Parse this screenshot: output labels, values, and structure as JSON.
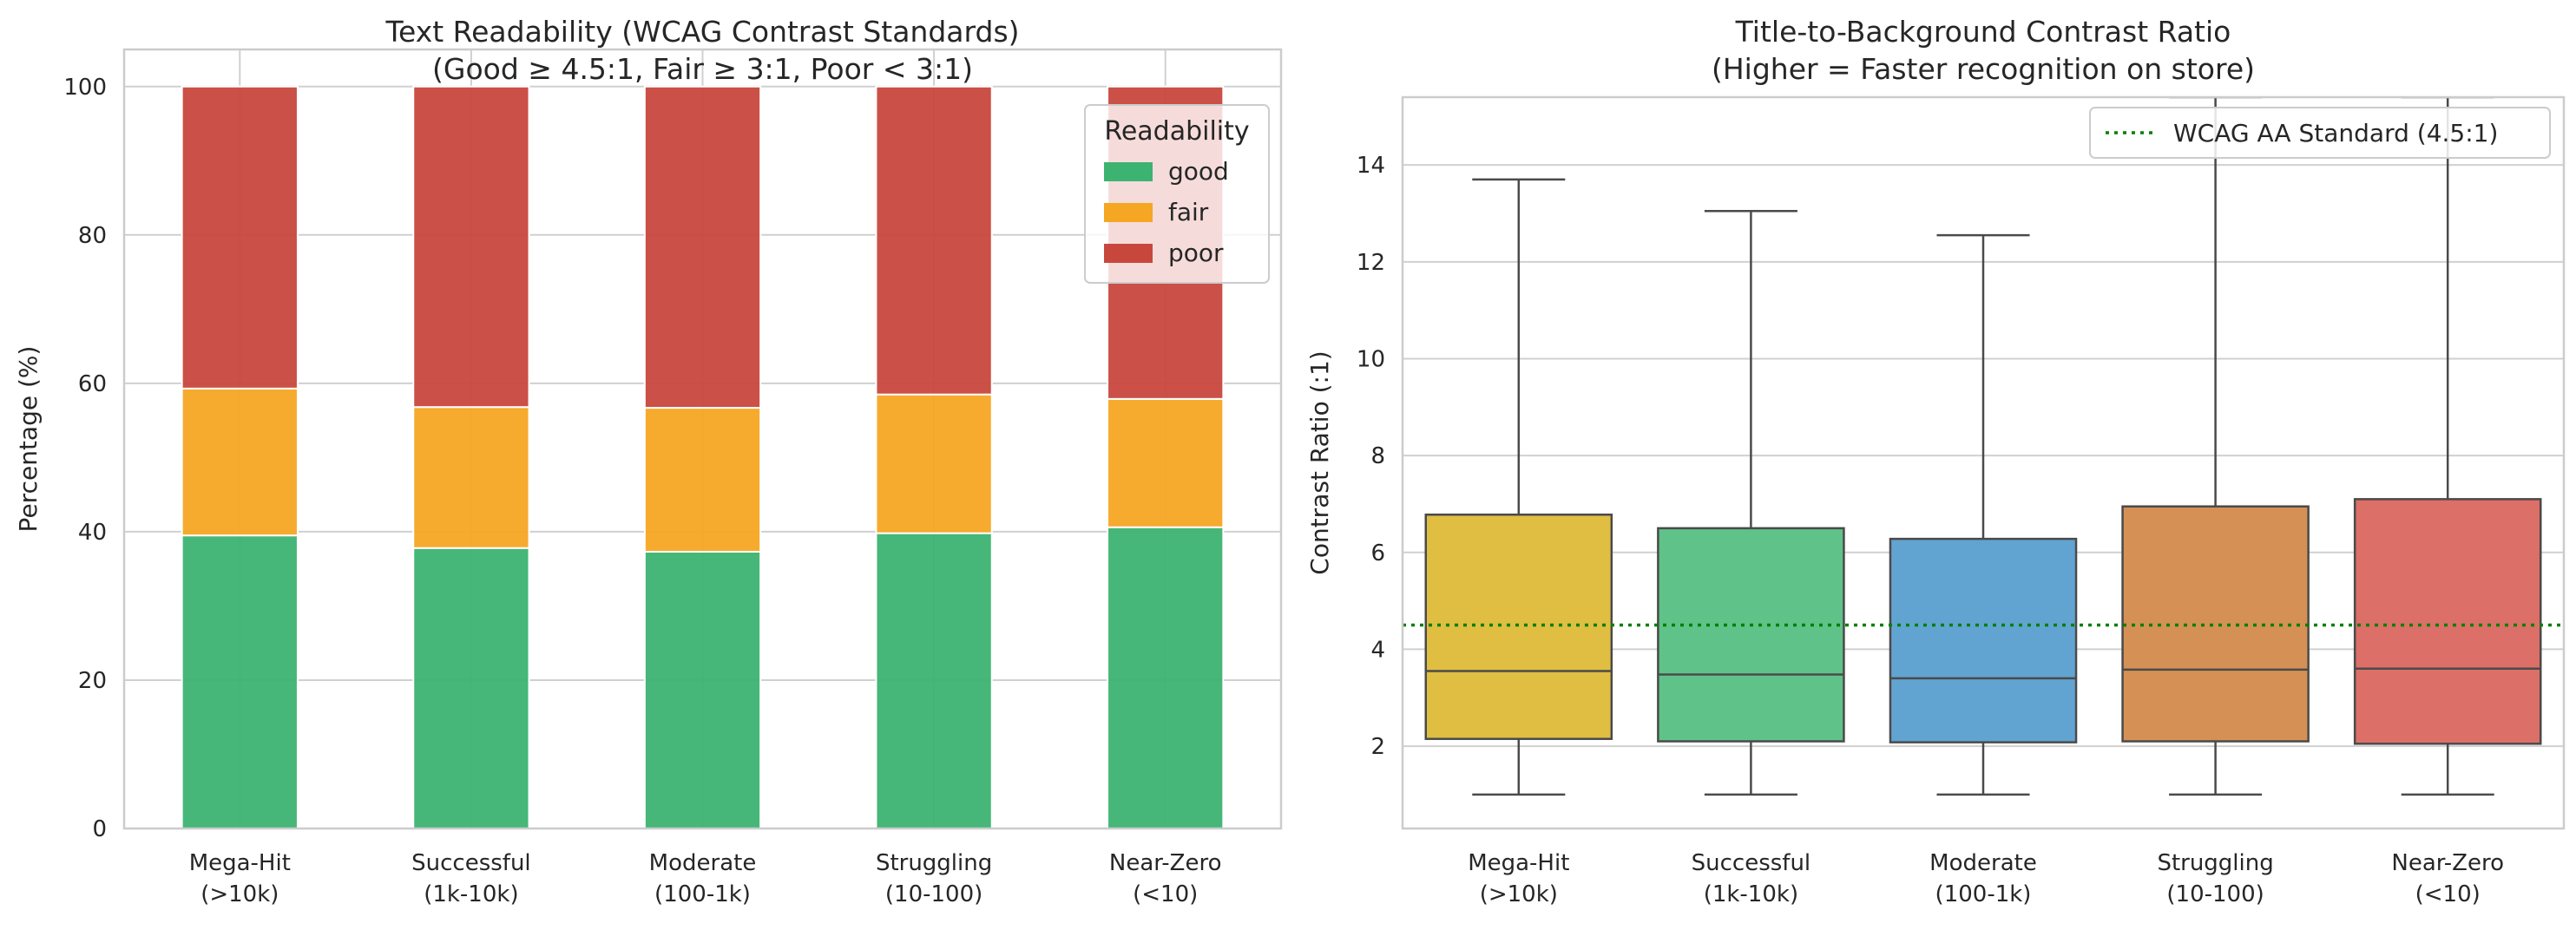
{
  "chart_data": [
    {
      "type": "bar",
      "stacked": true,
      "title": "Text Readability (WCAG Contrast Standards)",
      "subtitle": "(Good ≥ 4.5:1, Fair ≥ 3:1, Poor < 3:1)",
      "xlabel": "",
      "ylabel": "Percentage (%)",
      "ylim": [
        0,
        105
      ],
      "yticks": [
        0,
        20,
        40,
        60,
        80,
        100
      ],
      "grid": true,
      "categories": [
        "Mega-Hit\n(>10k)",
        "Successful\n(1k-10k)",
        "Moderate\n(100-1k)",
        "Struggling\n(10-100)",
        "Near-Zero\n(<10)"
      ],
      "series": [
        {
          "name": "good",
          "color": "#3cb371",
          "values": [
            39.5,
            37.8,
            37.3,
            39.8,
            40.6
          ]
        },
        {
          "name": "fair",
          "color": "#f5a623",
          "values": [
            19.8,
            19.0,
            19.4,
            18.7,
            17.3
          ]
        },
        {
          "name": "poor",
          "color": "#c8473d",
          "values": [
            40.7,
            43.2,
            43.3,
            41.5,
            42.1
          ]
        }
      ],
      "legend": {
        "title": "Readability",
        "placement": "top-right"
      }
    },
    {
      "type": "box",
      "title": "Title-to-Background Contrast Ratio",
      "subtitle": "(Higher = Faster recognition on store)",
      "xlabel": "",
      "ylabel": "Contrast Ratio (:1)",
      "ylim": [
        0.3,
        15.4
      ],
      "yticks": [
        2,
        4,
        6,
        8,
        10,
        12,
        14
      ],
      "grid": true,
      "categories": [
        "Mega-Hit\n(>10k)",
        "Successful\n(1k-10k)",
        "Moderate\n(100-1k)",
        "Struggling\n(10-100)",
        "Near-Zero\n(<10)"
      ],
      "boxes": [
        {
          "whisker_low": 1.0,
          "q1": 2.15,
          "median": 3.55,
          "q3": 6.78,
          "whisker_high": 13.7,
          "color": "#dfbe42"
        },
        {
          "whisker_low": 1.0,
          "q1": 2.1,
          "median": 3.48,
          "q3": 6.5,
          "whisker_high": 13.05,
          "color": "#5fc389"
        },
        {
          "whisker_low": 1.0,
          "q1": 2.08,
          "median": 3.4,
          "q3": 6.28,
          "whisker_high": 12.55,
          "color": "#62a4d1"
        },
        {
          "whisker_low": 1.0,
          "q1": 2.1,
          "median": 3.58,
          "q3": 6.95,
          "whisker_high": 15.4,
          "color": "#d59155"
        },
        {
          "whisker_low": 1.0,
          "q1": 2.05,
          "median": 3.6,
          "q3": 7.1,
          "whisker_high": 15.4,
          "color": "#dc6f68"
        }
      ],
      "reference_line": {
        "label": "WCAG AA Standard (4.5:1)",
        "value": 4.5,
        "color": "#008000",
        "style": "dotted"
      },
      "legend": {
        "placement": "top-right"
      }
    }
  ]
}
